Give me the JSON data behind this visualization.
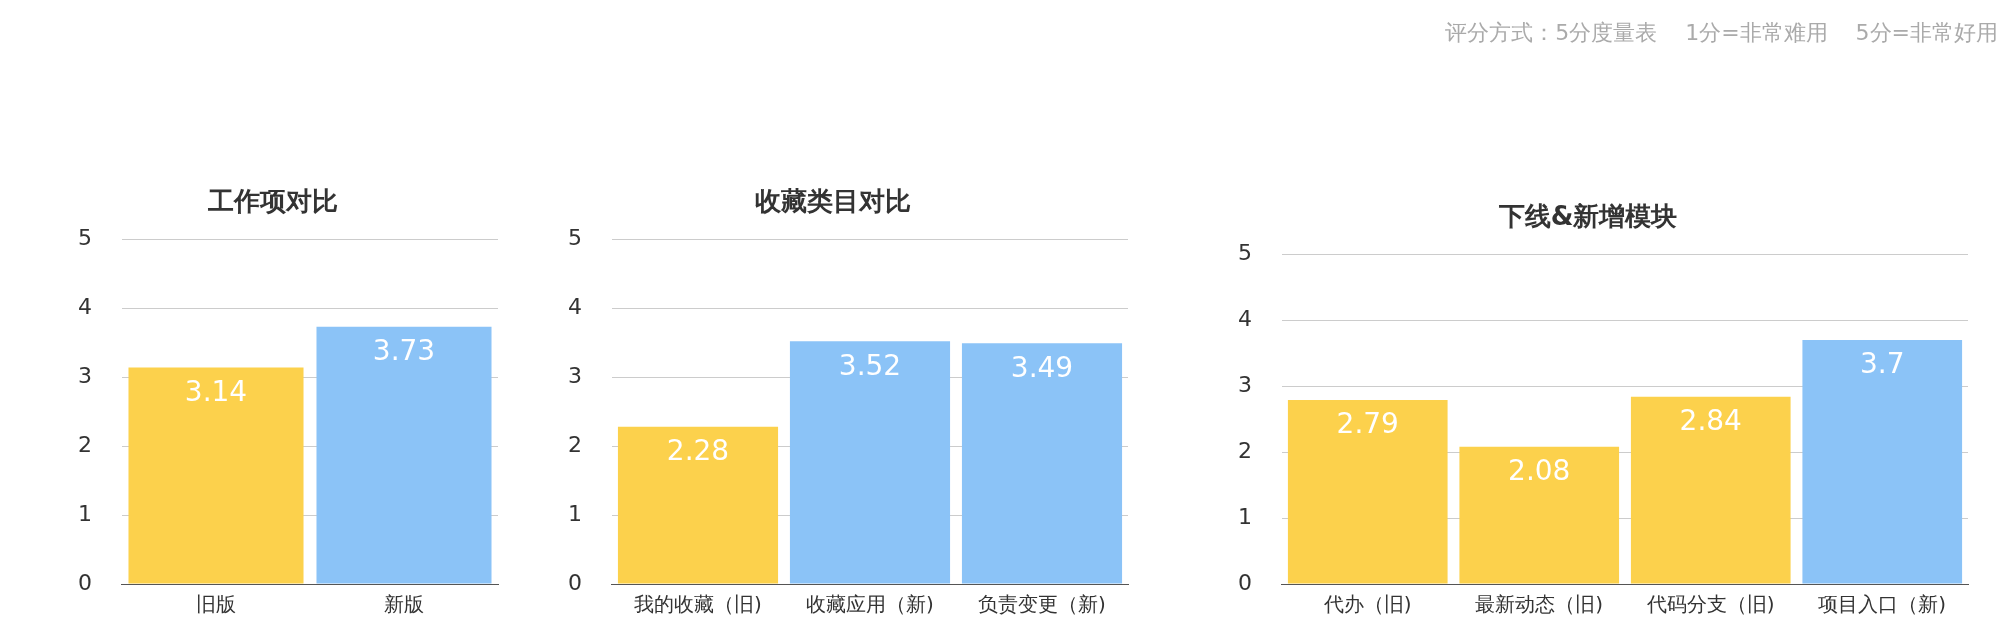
{
  "chart_data": [
    {
      "type": "bar",
      "title": "工作项对比",
      "categories": [
        "旧版",
        "新版"
      ],
      "values": [
        3.14,
        3.73
      ],
      "colors": [
        "#fcd14c",
        "#8bc3f7"
      ],
      "ylim": [
        0,
        5
      ],
      "yticks": [
        0,
        1,
        2,
        3,
        4,
        5
      ],
      "grid": "y",
      "data_labels": true,
      "legend": false
    },
    {
      "type": "bar",
      "title": "收藏类目对比",
      "categories": [
        "我的收藏（旧)",
        "收藏应用（新)",
        "负责变更（新)"
      ],
      "values": [
        2.28,
        3.52,
        3.49
      ],
      "colors": [
        "#fcd14c",
        "#8bc3f7",
        "#8bc3f7"
      ],
      "ylim": [
        0,
        5
      ],
      "yticks": [
        0,
        1,
        2,
        3,
        4,
        5
      ],
      "grid": "y",
      "data_labels": true,
      "legend": false
    },
    {
      "type": "bar",
      "title": "下线&新增模块",
      "categories": [
        "代办（旧)",
        "最新动态（旧)",
        "代码分支（旧)",
        "项目入口（新)"
      ],
      "values": [
        2.79,
        2.08,
        2.84,
        3.7
      ],
      "colors": [
        "#fcd14c",
        "#fcd14c",
        "#fcd14c",
        "#8bc3f7"
      ],
      "ylim": [
        0,
        5
      ],
      "yticks": [
        0,
        1,
        2,
        3,
        4,
        5
      ],
      "grid": "y",
      "data_labels": true,
      "legend": false,
      "annotations": [
        "评分方式：5分度量表    1分=非常难用    5分=非常好用"
      ]
    }
  ]
}
